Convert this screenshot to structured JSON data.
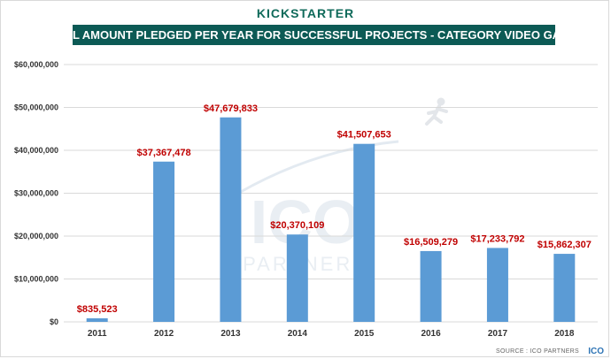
{
  "brand": "KICKSTARTER",
  "source": "SOURCE : ICO PARTNERS",
  "logo": "ICO",
  "watermark": {
    "main": "ICO",
    "sub": "PARTNERS",
    "icon": "runner-icon"
  },
  "colors": {
    "bar": "#5b9bd5",
    "data_label": "#c00000",
    "title_bg": "#0c5a55",
    "brand": "#0f6a5a"
  },
  "chart_data": {
    "type": "bar",
    "title": "TOTAL AMOUNT PLEDGED PER YEAR FOR SUCCESSFUL PROJECTS - CATEGORY VIDEO GAMES",
    "categories": [
      "2011",
      "2012",
      "2013",
      "2014",
      "2015",
      "2016",
      "2017",
      "2018"
    ],
    "values": [
      835523,
      37367478,
      47679833,
      20370109,
      41507653,
      16509279,
      17233792,
      15862307
    ],
    "data_labels": [
      "$835,523",
      "$37,367,478",
      "$47,679,833",
      "$20,370,109",
      "$41,507,653",
      "$16,509,279",
      "$17,233,792",
      "$15,862,307"
    ],
    "yticks": [
      0,
      10000000,
      20000000,
      30000000,
      40000000,
      50000000,
      60000000
    ],
    "ytick_labels": [
      "$0",
      "$10,000,000",
      "$20,000,000",
      "$30,000,000",
      "$40,000,000",
      "$50,000,000",
      "$60,000,000"
    ],
    "ylim": [
      0,
      60000000
    ],
    "grid": true,
    "legend": "none",
    "xlabel": "",
    "ylabel": ""
  }
}
